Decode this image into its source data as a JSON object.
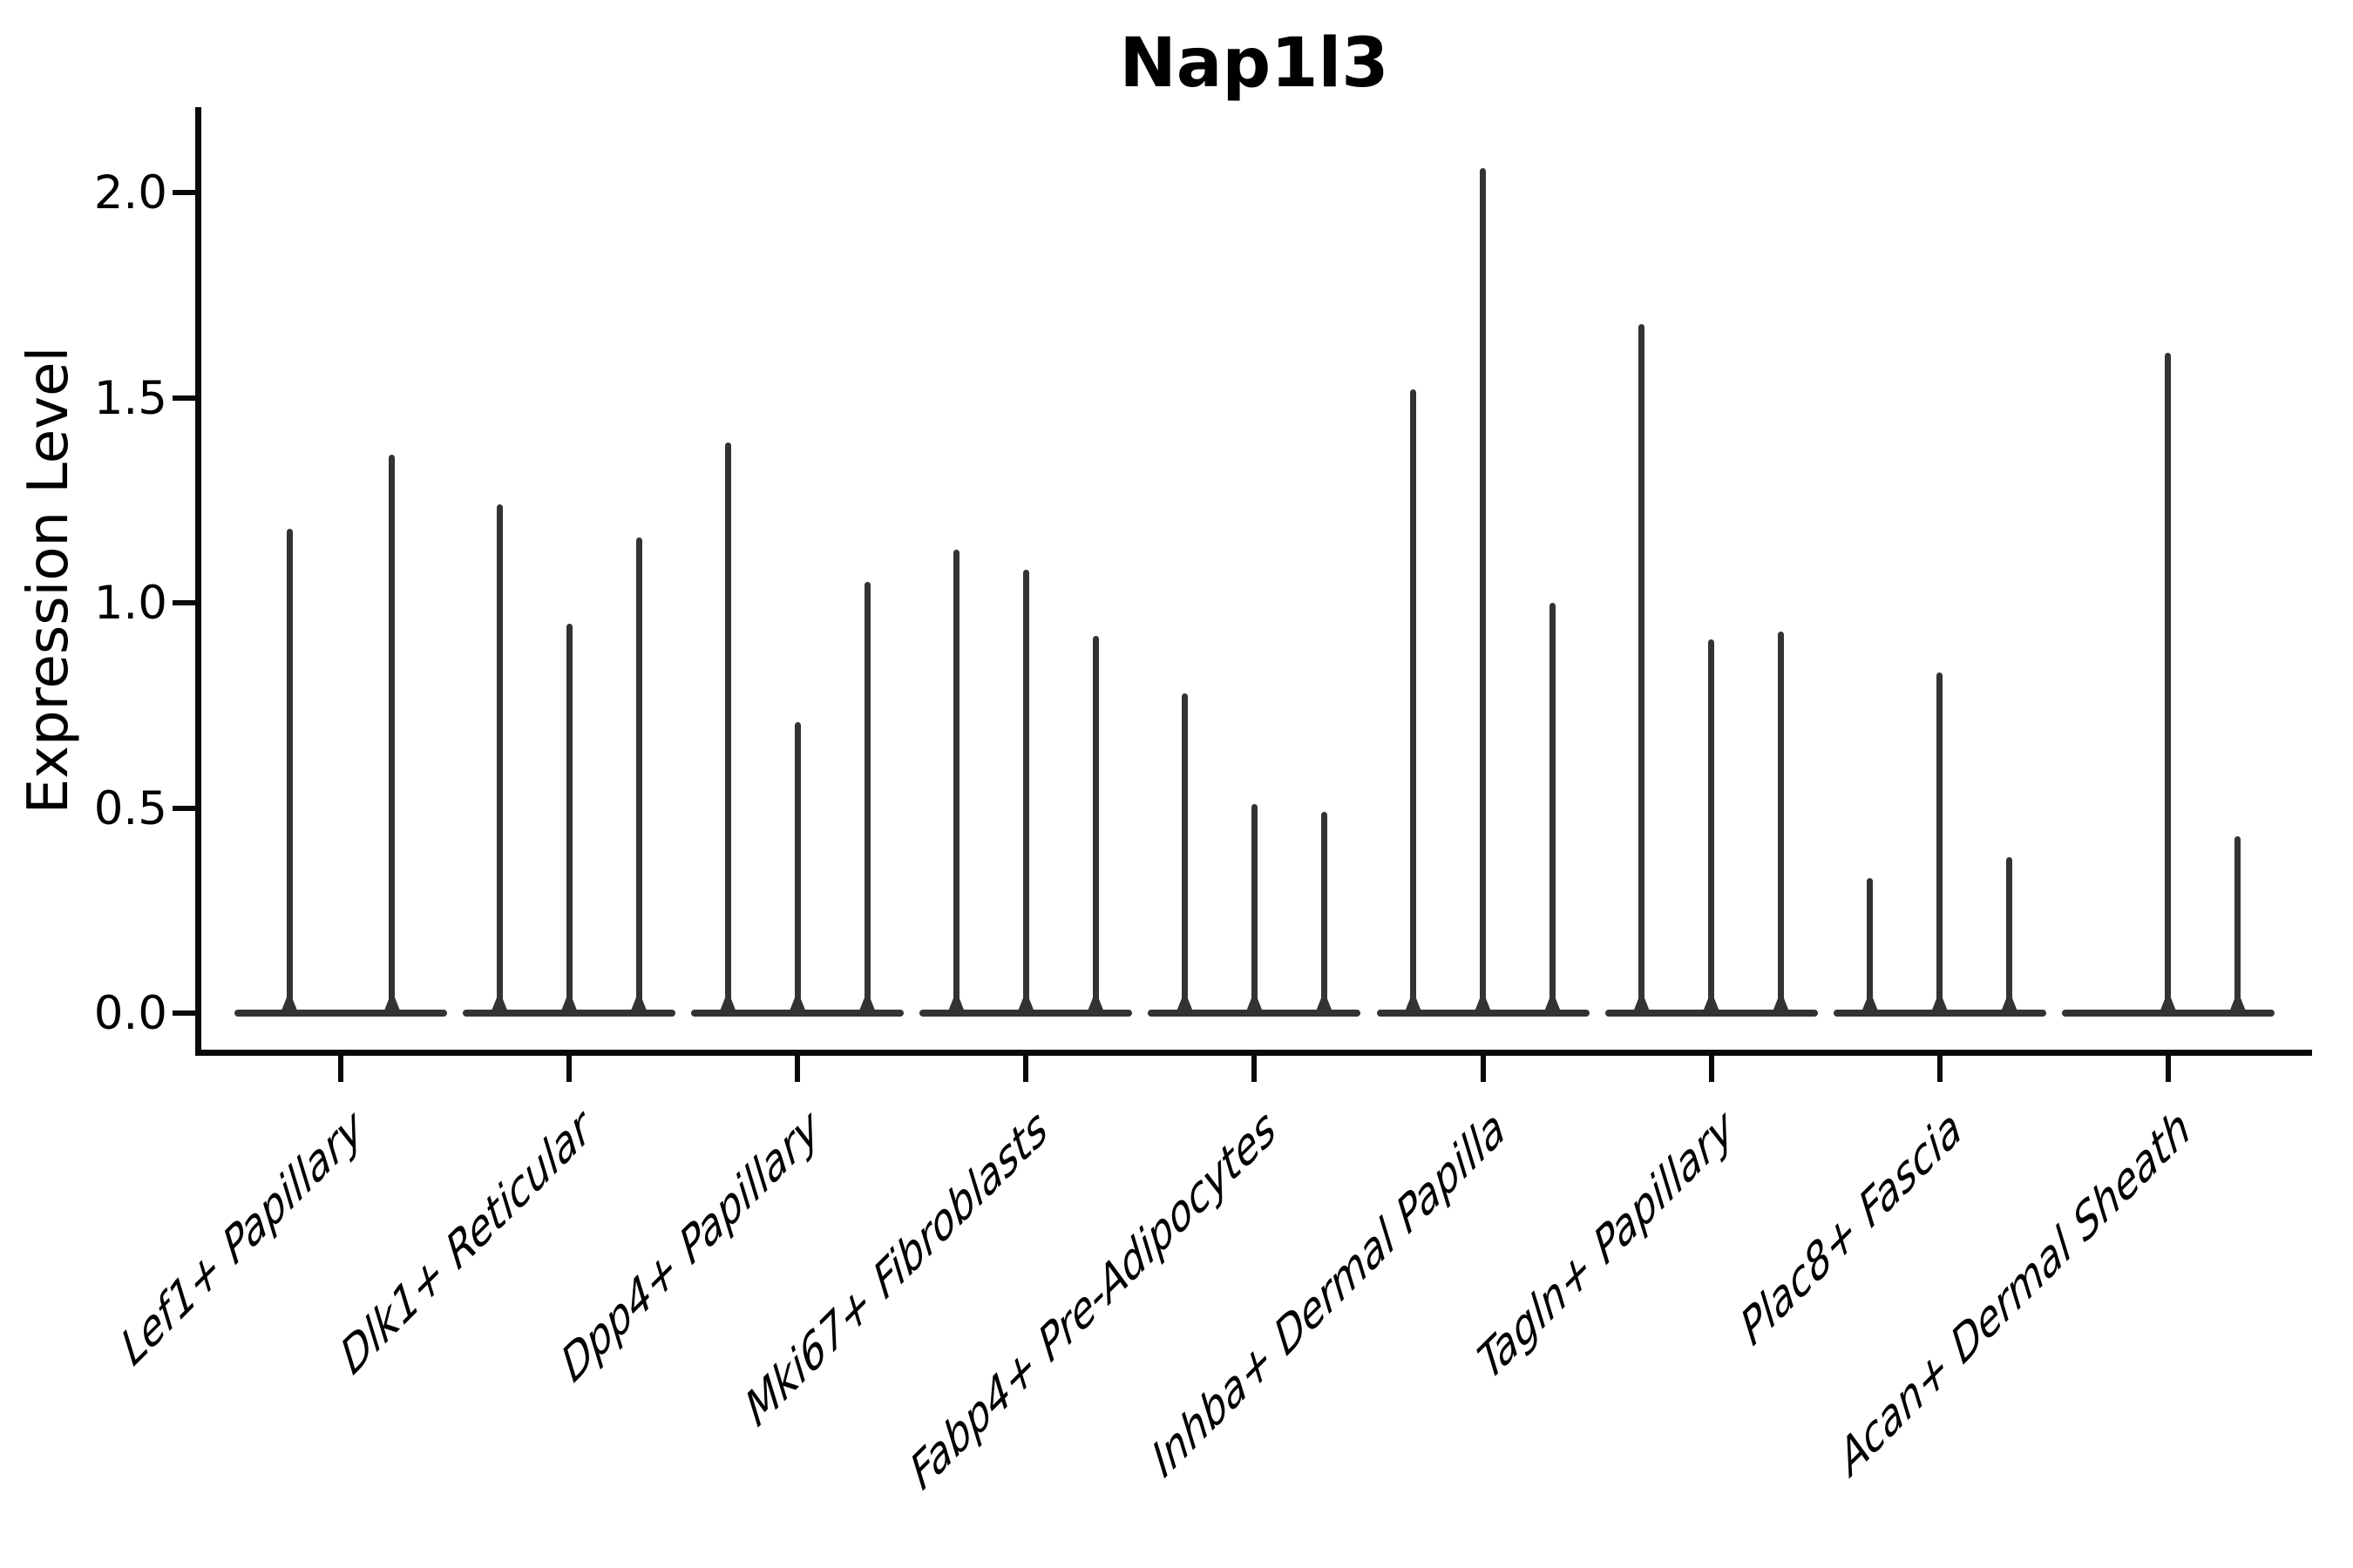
{
  "figure": {
    "title": "Nap1l3"
  },
  "axes": {
    "ylabel": "Expression Level",
    "ytick_labels": [
      "0.0",
      "0.5",
      "1.0",
      "1.5",
      "2.0"
    ]
  },
  "colors": {
    "violin": "#333333",
    "axis": "#0a0a0a",
    "text": "#000000",
    "background": "#ffffff"
  },
  "chart_data": {
    "type": "violin",
    "title": "Nap1l3",
    "xlabel": "",
    "ylabel": "Expression Level",
    "ylim": [
      -0.1,
      2.2
    ],
    "yticks": [
      0.0,
      0.5,
      1.0,
      1.5,
      2.0
    ],
    "grid": false,
    "legend_position": "none",
    "description": "Needle-thin violins (expression concentrated at 0) with flat bases at y=0; each category holds 2-3 sub-violins; value listed is the maximum expression level reached by each sub-violin spike",
    "categories": [
      "Lef1+ Papillary",
      "Dlk1+ Reticular",
      "Dpp4+ Papillary",
      "Mki67+ Fibroblasts",
      "Fabp4+ Pre-Adipocytes",
      "Inhba+ Dermal Papilla",
      "Tagln+ Papillary",
      "Plac8+ Fascia",
      "Acan+ Dermal Sheath"
    ],
    "series": [
      {
        "category": "Lef1+ Papillary",
        "violins": [
          {
            "offset_frac": -0.225,
            "max": 1.18
          },
          {
            "offset_frac": 0.225,
            "max": 1.36
          }
        ]
      },
      {
        "category": "Dlk1+ Reticular",
        "violins": [
          {
            "offset_frac": -0.305,
            "max": 1.24
          },
          {
            "offset_frac": 0.0,
            "max": 0.95
          },
          {
            "offset_frac": 0.305,
            "max": 1.16
          }
        ]
      },
      {
        "category": "Dpp4+ Papillary",
        "violins": [
          {
            "offset_frac": -0.305,
            "max": 1.39
          },
          {
            "offset_frac": 0.0,
            "max": 0.71
          },
          {
            "offset_frac": 0.305,
            "max": 1.05
          }
        ]
      },
      {
        "category": "Mki67+ Fibroblasts",
        "violins": [
          {
            "offset_frac": -0.305,
            "max": 1.13
          },
          {
            "offset_frac": 0.0,
            "max": 1.08
          },
          {
            "offset_frac": 0.305,
            "max": 0.92
          }
        ]
      },
      {
        "category": "Fabp4+ Pre-Adipocytes",
        "violins": [
          {
            "offset_frac": -0.305,
            "max": 0.78
          },
          {
            "offset_frac": 0.0,
            "max": 0.51
          },
          {
            "offset_frac": 0.305,
            "max": 0.49
          }
        ]
      },
      {
        "category": "Inhba+ Dermal Papilla",
        "violins": [
          {
            "offset_frac": -0.305,
            "max": 1.52
          },
          {
            "offset_frac": 0.0,
            "max": 2.06
          },
          {
            "offset_frac": 0.305,
            "max": 1.0
          }
        ]
      },
      {
        "category": "Tagln+ Papillary",
        "violins": [
          {
            "offset_frac": -0.305,
            "max": 1.68
          },
          {
            "offset_frac": 0.0,
            "max": 0.91
          },
          {
            "offset_frac": 0.305,
            "max": 0.93
          }
        ]
      },
      {
        "category": "Plac8+ Fascia",
        "violins": [
          {
            "offset_frac": -0.305,
            "max": 0.33
          },
          {
            "offset_frac": 0.0,
            "max": 0.83
          },
          {
            "offset_frac": 0.305,
            "max": 0.38
          }
        ]
      },
      {
        "category": "Acan+ Dermal Sheath",
        "violins": [
          {
            "offset_frac": 0.0,
            "max": 1.61
          },
          {
            "offset_frac": 0.305,
            "max": 0.43
          }
        ]
      }
    ]
  }
}
